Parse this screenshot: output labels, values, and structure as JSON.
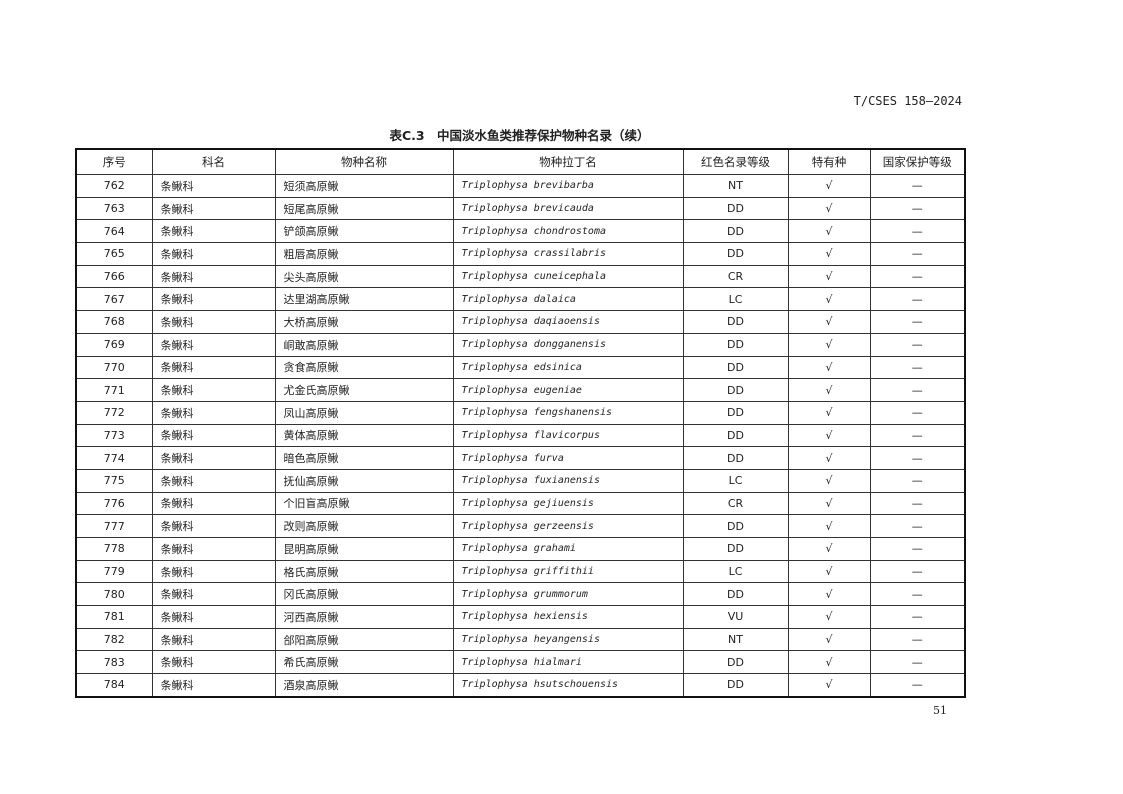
{
  "header": {
    "doc_code": "T/CSES 158—2024"
  },
  "table_title": "表C.3　中国淡水鱼类推荐保护物种名录（续）",
  "columns": [
    "序号",
    "科名",
    "物种名称",
    "物种拉丁名",
    "红色名录等级",
    "特有种",
    "国家保护等级"
  ],
  "rows": [
    [
      "762",
      "条鳅科",
      "短须高原鳅",
      "Triplophysa brevibarba",
      "NT",
      "√",
      "—"
    ],
    [
      "763",
      "条鳅科",
      "短尾高原鳅",
      "Triplophysa brevicauda",
      "DD",
      "√",
      "—"
    ],
    [
      "764",
      "条鳅科",
      "铲颌高原鳅",
      "Triplophysa chondrostoma",
      "DD",
      "√",
      "—"
    ],
    [
      "765",
      "条鳅科",
      "粗唇高原鳅",
      "Triplophysa crassilabris",
      "DD",
      "√",
      "—"
    ],
    [
      "766",
      "条鳅科",
      "尖头高原鳅",
      "Triplophysa cuneicephala",
      "CR",
      "√",
      "—"
    ],
    [
      "767",
      "条鳅科",
      "达里湖高原鳅",
      "Triplophysa dalaica",
      "LC",
      "√",
      "—"
    ],
    [
      "768",
      "条鳅科",
      "大桥高原鳅",
      "Triplophysa daqiaoensis",
      "DD",
      "√",
      "—"
    ],
    [
      "769",
      "条鳅科",
      "峒敢高原鳅",
      "Triplophysa dongganensis",
      "DD",
      "√",
      "—"
    ],
    [
      "770",
      "条鳅科",
      "贪食高原鳅",
      "Triplophysa edsinica",
      "DD",
      "√",
      "—"
    ],
    [
      "771",
      "条鳅科",
      "尤金氏高原鳅",
      "Triplophysa eugeniae",
      "DD",
      "√",
      "—"
    ],
    [
      "772",
      "条鳅科",
      "凤山高原鳅",
      "Triplophysa fengshanensis",
      "DD",
      "√",
      "—"
    ],
    [
      "773",
      "条鳅科",
      "黄体高原鳅",
      "Triplophysa flavicorpus",
      "DD",
      "√",
      "—"
    ],
    [
      "774",
      "条鳅科",
      "暗色高原鳅",
      "Triplophysa furva",
      "DD",
      "√",
      "—"
    ],
    [
      "775",
      "条鳅科",
      "抚仙高原鳅",
      "Triplophysa fuxianensis",
      "LC",
      "√",
      "—"
    ],
    [
      "776",
      "条鳅科",
      "个旧盲高原鳅",
      "Triplophysa gejiuensis",
      "CR",
      "√",
      "—"
    ],
    [
      "777",
      "条鳅科",
      "改则高原鳅",
      "Triplophysa gerzeensis",
      "DD",
      "√",
      "—"
    ],
    [
      "778",
      "条鳅科",
      "昆明高原鳅",
      "Triplophysa grahami",
      "DD",
      "√",
      "—"
    ],
    [
      "779",
      "条鳅科",
      "格氏高原鳅",
      "Triplophysa griffithii",
      "LC",
      "√",
      "—"
    ],
    [
      "780",
      "条鳅科",
      "冈氏高原鳅",
      "Triplophysa grummorum",
      "DD",
      "√",
      "—"
    ],
    [
      "781",
      "条鳅科",
      "河西高原鳅",
      "Triplophysa hexiensis",
      "VU",
      "√",
      "—"
    ],
    [
      "782",
      "条鳅科",
      "郃阳高原鳅",
      "Triplophysa heyangensis",
      "NT",
      "√",
      "—"
    ],
    [
      "783",
      "条鳅科",
      "希氏高原鳅",
      "Triplophysa hialmari",
      "DD",
      "√",
      "—"
    ],
    [
      "784",
      "条鳅科",
      "酒泉高原鳅",
      "Triplophysa hsutschouensis",
      "DD",
      "√",
      "—"
    ]
  ],
  "page_number": "51"
}
